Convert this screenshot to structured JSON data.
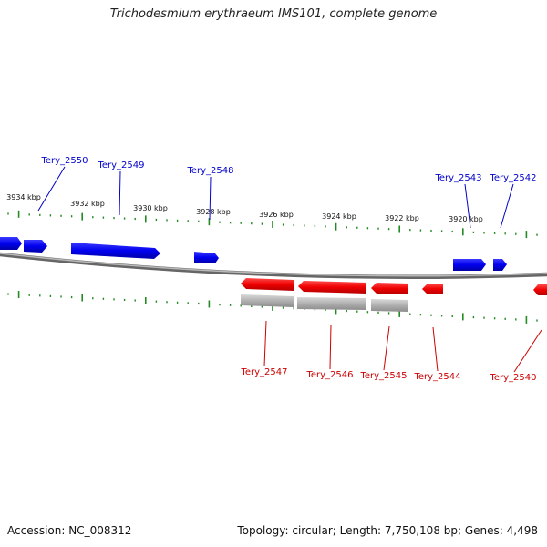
{
  "title": "Trichodesmium erythraeum IMS101, complete genome",
  "footer": {
    "accession": "Accession: NC_008312",
    "summary": "Topology: circular; Length: 7,750,108 bp; Genes: 4,498"
  },
  "colors": {
    "forward_gene": "#0000ee",
    "reverse_gene": "#ee0000",
    "rna_gray": "#b0b0b0",
    "backbone": "#808080",
    "ticks": "#228b22",
    "forward_label": "#0000cc",
    "reverse_label": "#cc0000"
  },
  "ticks": [
    {
      "label": "3934 kbp"
    },
    {
      "label": "3932 kbp"
    },
    {
      "label": "3930 kbp"
    },
    {
      "label": "3928 kbp"
    },
    {
      "label": "3926 kbp"
    },
    {
      "label": "3924 kbp"
    },
    {
      "label": "3922 kbp"
    },
    {
      "label": "3920 kbp"
    }
  ],
  "forward_labels": [
    {
      "label": "Tery_2550"
    },
    {
      "label": "Tery_2549"
    },
    {
      "label": "Tery_2548"
    },
    {
      "label": "Tery_2543"
    },
    {
      "label": "Tery_2542"
    }
  ],
  "reverse_labels": [
    {
      "label": "Tery_2547"
    },
    {
      "label": "Tery_2546"
    },
    {
      "label": "Tery_2545"
    },
    {
      "label": "Tery_2544"
    },
    {
      "label": "Tery_2540"
    }
  ]
}
